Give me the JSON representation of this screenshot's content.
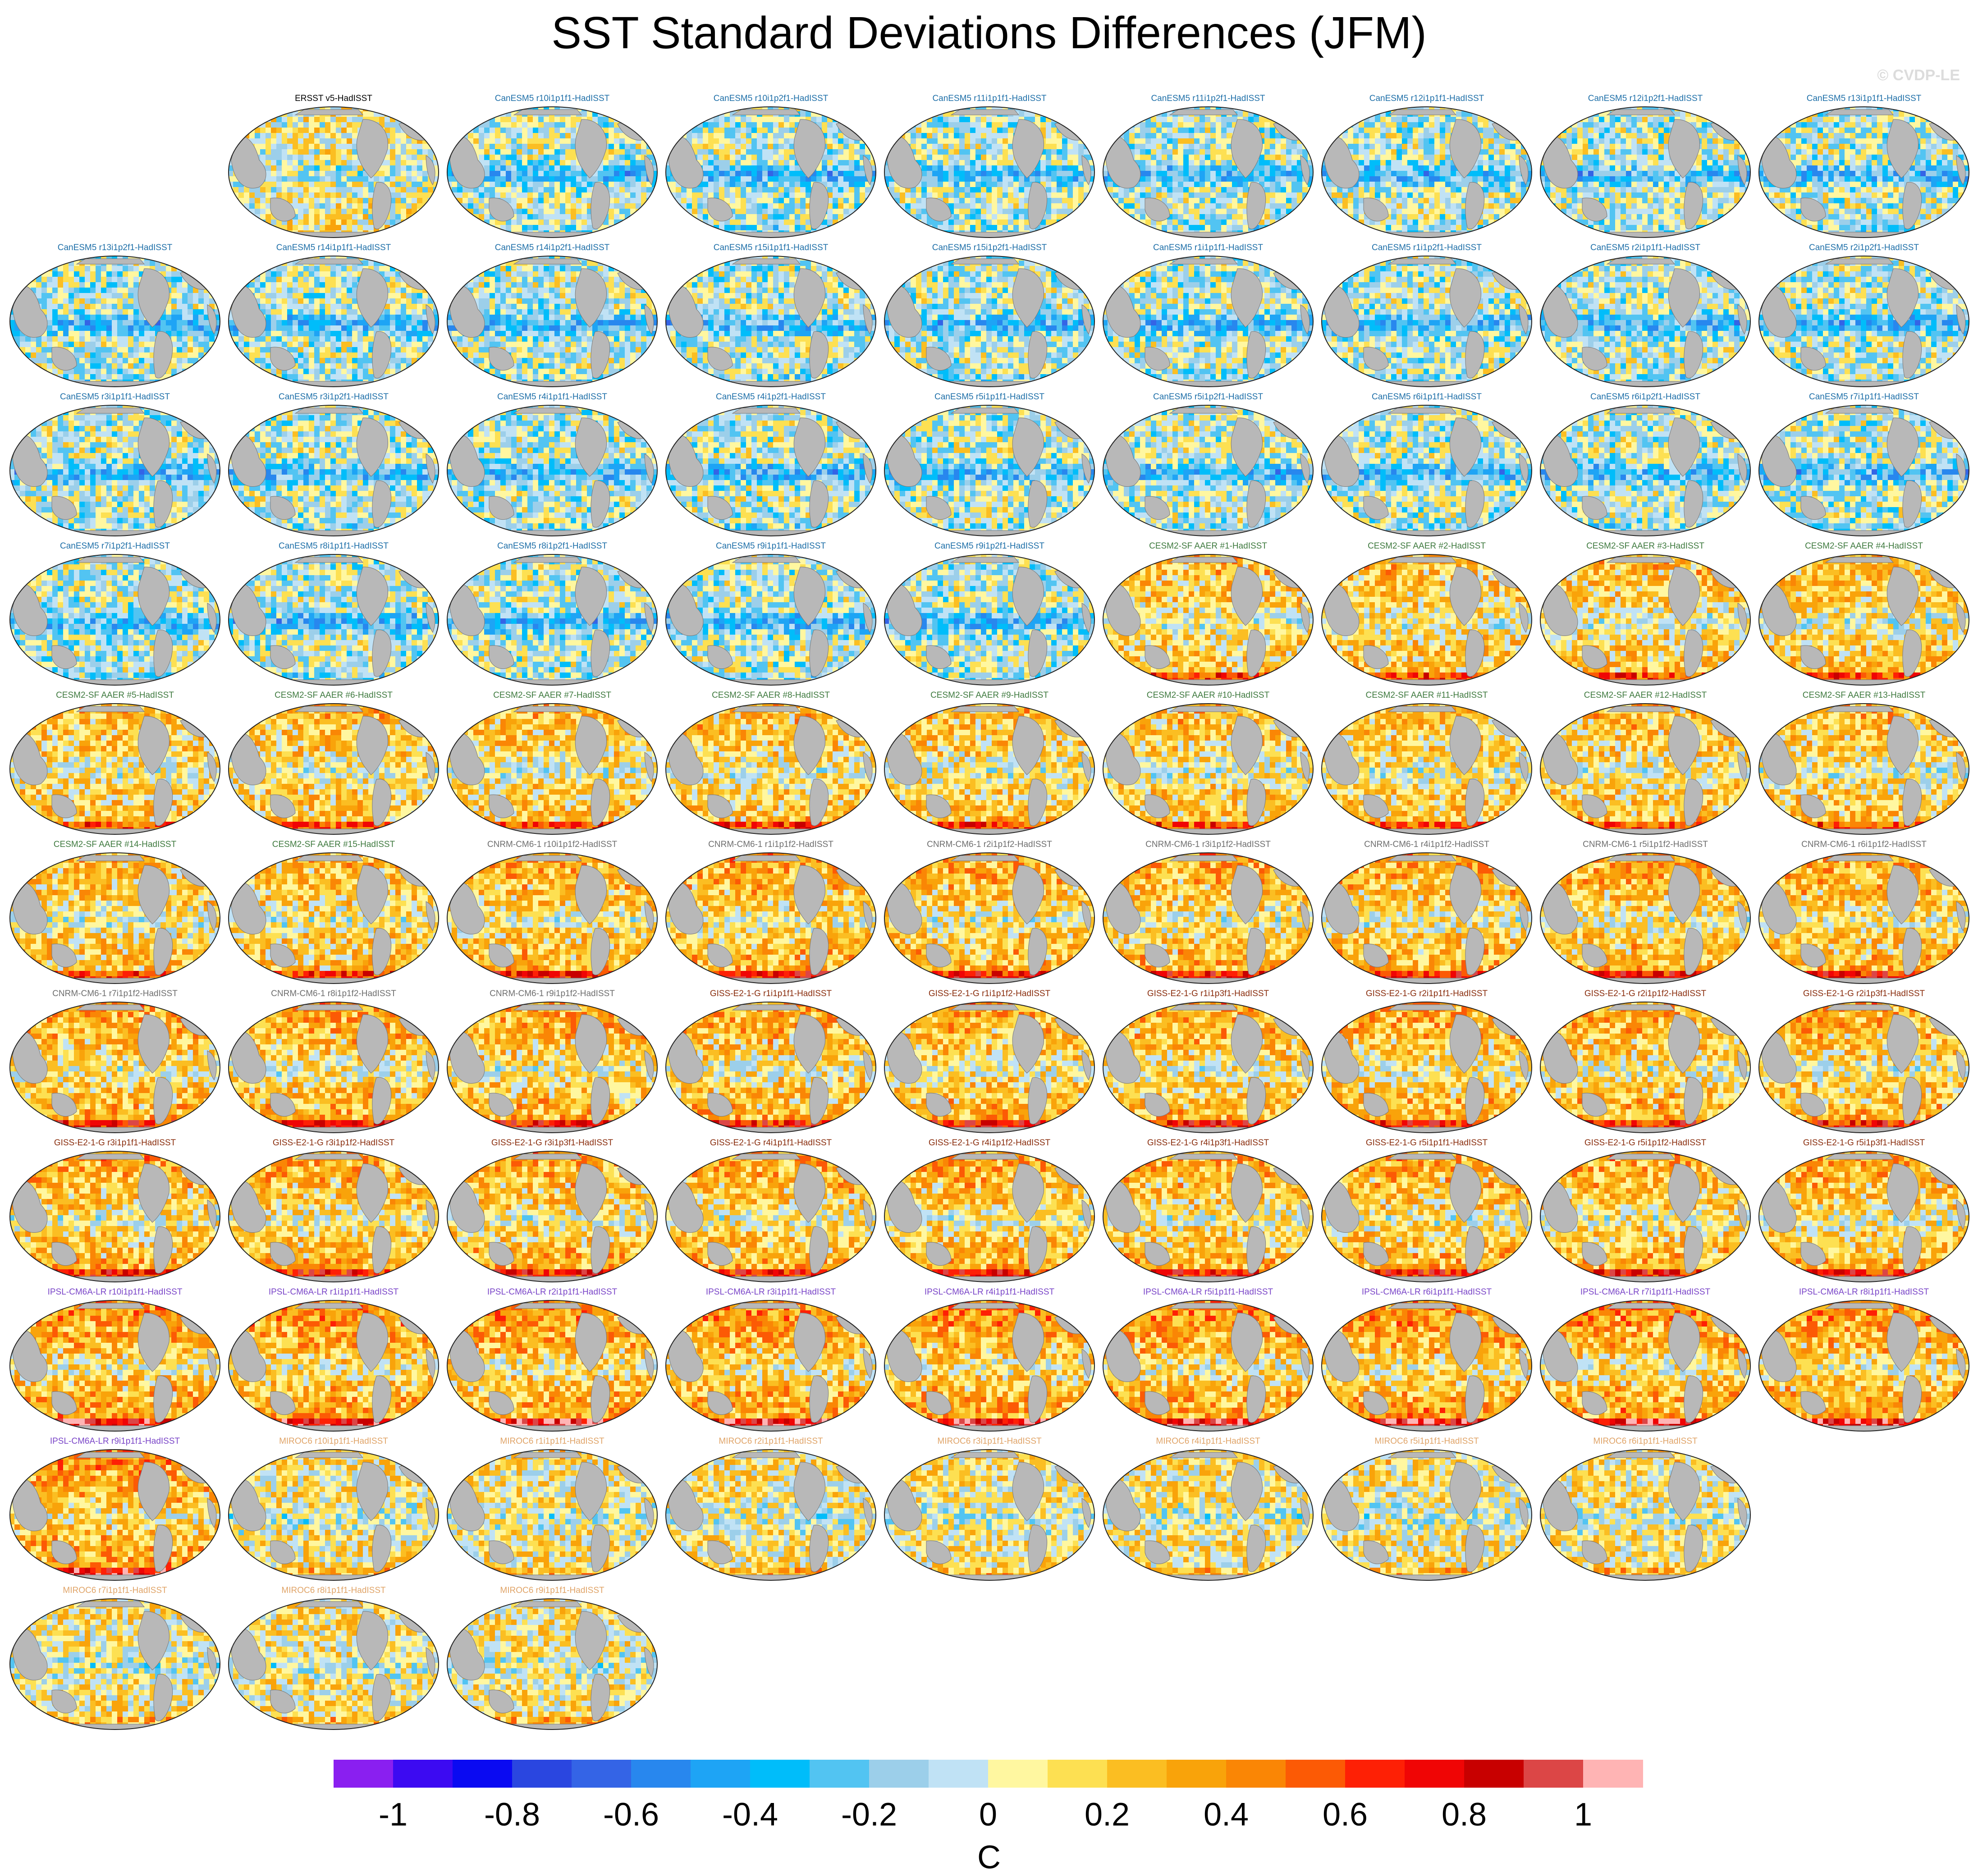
{
  "title": "SST Standard Deviations Differences (JFM)",
  "watermark": "© CVDP-LE",
  "colors": {
    "ocean_base": "#fff3a0",
    "land": "#b8b8b8",
    "groups": {
      "ERSST": "#000000",
      "CanESM5": "#1e6fa8",
      "CESM2-SF": "#3f7a3f",
      "CNRM-CM6-1": "#6e6e6e",
      "GISS-E2-1-G": "#8a2e0e",
      "IPSL-CM6A-LR": "#7a45c8",
      "MIROC6": "#e0a468"
    }
  },
  "chart_data": {
    "type": "heatmap",
    "title": "SST Standard Deviations Differences (JFM)",
    "units": "C",
    "colorbar": {
      "tick_labels": [
        "-1",
        "-0.8",
        "-0.6",
        "-0.4",
        "-0.2",
        "0",
        "0.2",
        "0.4",
        "0.6",
        "0.8",
        "1"
      ],
      "tick_values": [
        -1,
        -0.8,
        -0.6,
        -0.4,
        -0.2,
        0,
        0.2,
        0.4,
        0.6,
        0.8,
        1
      ],
      "boundaries": [
        -1.1,
        -1.0,
        -0.9,
        -0.8,
        -0.7,
        -0.6,
        -0.5,
        -0.4,
        -0.3,
        -0.2,
        -0.1,
        0,
        0.1,
        0.2,
        0.3,
        0.4,
        0.5,
        0.6,
        0.7,
        0.8,
        0.9,
        1.0,
        1.1
      ],
      "colors": [
        "#8a1ff0",
        "#3c0af2",
        "#0a0af2",
        "#2a46e0",
        "#3464e6",
        "#2887ee",
        "#1ea4f5",
        "#00bdfa",
        "#52c4f2",
        "#9ccfea",
        "#c0e2f5",
        "#fff7a0",
        "#fde052",
        "#fbbe22",
        "#f9a30a",
        "#fa8605",
        "#fc5a05",
        "#fe2005",
        "#f00505",
        "#c80000",
        "#dc4646",
        "#ffb4b4"
      ]
    },
    "panels": [
      {
        "title": "ERSST v5-HadISST",
        "group": "ERSST",
        "tone": 0.05
      },
      {
        "title": "CanESM5 r10i1p1f1-HadISST",
        "group": "CanESM5",
        "tone": -0.05
      },
      {
        "title": "CanESM5 r10i1p2f1-HadISST",
        "group": "CanESM5",
        "tone": -0.05
      },
      {
        "title": "CanESM5 r11i1p1f1-HadISST",
        "group": "CanESM5",
        "tone": -0.05
      },
      {
        "title": "CanESM5 r11i1p2f1-HadISST",
        "group": "CanESM5",
        "tone": -0.05
      },
      {
        "title": "CanESM5 r12i1p1f1-HadISST",
        "group": "CanESM5",
        "tone": -0.05
      },
      {
        "title": "CanESM5 r12i1p2f1-HadISST",
        "group": "CanESM5",
        "tone": -0.05
      },
      {
        "title": "CanESM5 r13i1p1f1-HadISST",
        "group": "CanESM5",
        "tone": -0.05
      },
      {
        "title": "CanESM5 r13i1p2f1-HadISST",
        "group": "CanESM5",
        "tone": -0.05
      },
      {
        "title": "CanESM5 r14i1p1f1-HadISST",
        "group": "CanESM5",
        "tone": -0.05
      },
      {
        "title": "CanESM5 r14i1p2f1-HadISST",
        "group": "CanESM5",
        "tone": -0.05
      },
      {
        "title": "CanESM5 r15i1p1f1-HadISST",
        "group": "CanESM5",
        "tone": -0.05
      },
      {
        "title": "CanESM5 r15i1p2f1-HadISST",
        "group": "CanESM5",
        "tone": -0.05
      },
      {
        "title": "CanESM5 r1i1p1f1-HadISST",
        "group": "CanESM5",
        "tone": -0.05
      },
      {
        "title": "CanESM5 r1i1p2f1-HadISST",
        "group": "CanESM5",
        "tone": -0.05
      },
      {
        "title": "CanESM5 r2i1p1f1-HadISST",
        "group": "CanESM5",
        "tone": -0.05
      },
      {
        "title": "CanESM5 r2i1p2f1-HadISST",
        "group": "CanESM5",
        "tone": -0.05
      },
      {
        "title": "CanESM5 r3i1p1f1-HadISST",
        "group": "CanESM5",
        "tone": -0.05
      },
      {
        "title": "CanESM5 r3i1p2f1-HadISST",
        "group": "CanESM5",
        "tone": -0.05
      },
      {
        "title": "CanESM5 r4i1p1f1-HadISST",
        "group": "CanESM5",
        "tone": -0.05
      },
      {
        "title": "CanESM5 r4i1p2f1-HadISST",
        "group": "CanESM5",
        "tone": -0.05
      },
      {
        "title": "CanESM5 r5i1p1f1-HadISST",
        "group": "CanESM5",
        "tone": -0.05
      },
      {
        "title": "CanESM5 r5i1p2f1-HadISST",
        "group": "CanESM5",
        "tone": -0.05
      },
      {
        "title": "CanESM5 r6i1p1f1-HadISST",
        "group": "CanESM5",
        "tone": -0.05
      },
      {
        "title": "CanESM5 r6i1p2f1-HadISST",
        "group": "CanESM5",
        "tone": -0.05
      },
      {
        "title": "CanESM5 r7i1p1f1-HadISST",
        "group": "CanESM5",
        "tone": -0.05
      },
      {
        "title": "CanESM5 r7i1p2f1-HadISST",
        "group": "CanESM5",
        "tone": -0.05
      },
      {
        "title": "CanESM5 r8i1p1f1-HadISST",
        "group": "CanESM5",
        "tone": -0.05
      },
      {
        "title": "CanESM5 r8i1p2f1-HadISST",
        "group": "CanESM5",
        "tone": -0.05
      },
      {
        "title": "CanESM5 r9i1p1f1-HadISST",
        "group": "CanESM5",
        "tone": -0.05
      },
      {
        "title": "CanESM5 r9i1p2f1-HadISST",
        "group": "CanESM5",
        "tone": -0.05
      },
      {
        "title": "CESM2-SF AAER #1-HadISST",
        "group": "CESM2-SF",
        "tone": 0.2
      },
      {
        "title": "CESM2-SF AAER #2-HadISST",
        "group": "CESM2-SF",
        "tone": 0.2
      },
      {
        "title": "CESM2-SF AAER #3-HadISST",
        "group": "CESM2-SF",
        "tone": 0.2
      },
      {
        "title": "CESM2-SF AAER #4-HadISST",
        "group": "CESM2-SF",
        "tone": 0.2
      },
      {
        "title": "CESM2-SF AAER #5-HadISST",
        "group": "CESM2-SF",
        "tone": 0.2
      },
      {
        "title": "CESM2-SF AAER #6-HadISST",
        "group": "CESM2-SF",
        "tone": 0.2
      },
      {
        "title": "CESM2-SF AAER #7-HadISST",
        "group": "CESM2-SF",
        "tone": 0.2
      },
      {
        "title": "CESM2-SF AAER #8-HadISST",
        "group": "CESM2-SF",
        "tone": 0.2
      },
      {
        "title": "CESM2-SF AAER #9-HadISST",
        "group": "CESM2-SF",
        "tone": 0.2
      },
      {
        "title": "CESM2-SF AAER #10-HadISST",
        "group": "CESM2-SF",
        "tone": 0.2
      },
      {
        "title": "CESM2-SF AAER #11-HadISST",
        "group": "CESM2-SF",
        "tone": 0.2
      },
      {
        "title": "CESM2-SF AAER #12-HadISST",
        "group": "CESM2-SF",
        "tone": 0.2
      },
      {
        "title": "CESM2-SF AAER #13-HadISST",
        "group": "CESM2-SF",
        "tone": 0.2
      },
      {
        "title": "CESM2-SF AAER #14-HadISST",
        "group": "CESM2-SF",
        "tone": 0.2
      },
      {
        "title": "CESM2-SF AAER #15-HadISST",
        "group": "CESM2-SF",
        "tone": 0.2
      },
      {
        "title": "CNRM-CM6-1 r10i1p1f2-HadISST",
        "group": "CNRM-CM6-1",
        "tone": 0.25
      },
      {
        "title": "CNRM-CM6-1 r1i1p1f2-HadISST",
        "group": "CNRM-CM6-1",
        "tone": 0.25
      },
      {
        "title": "CNRM-CM6-1 r2i1p1f2-HadISST",
        "group": "CNRM-CM6-1",
        "tone": 0.25
      },
      {
        "title": "CNRM-CM6-1 r3i1p1f2-HadISST",
        "group": "CNRM-CM6-1",
        "tone": 0.25
      },
      {
        "title": "CNRM-CM6-1 r4i1p1f2-HadISST",
        "group": "CNRM-CM6-1",
        "tone": 0.25
      },
      {
        "title": "CNRM-CM6-1 r5i1p1f2-HadISST",
        "group": "CNRM-CM6-1",
        "tone": 0.25
      },
      {
        "title": "CNRM-CM6-1 r6i1p1f2-HadISST",
        "group": "CNRM-CM6-1",
        "tone": 0.25
      },
      {
        "title": "CNRM-CM6-1 r7i1p1f2-HadISST",
        "group": "CNRM-CM6-1",
        "tone": 0.25
      },
      {
        "title": "CNRM-CM6-1 r8i1p1f2-HadISST",
        "group": "CNRM-CM6-1",
        "tone": 0.25
      },
      {
        "title": "CNRM-CM6-1 r9i1p1f2-HadISST",
        "group": "CNRM-CM6-1",
        "tone": 0.25
      },
      {
        "title": "GISS-E2-1-G r1i1p1f1-HadISST",
        "group": "GISS-E2-1-G",
        "tone": 0.25
      },
      {
        "title": "GISS-E2-1-G r1i1p1f2-HadISST",
        "group": "GISS-E2-1-G",
        "tone": 0.25
      },
      {
        "title": "GISS-E2-1-G r1i1p3f1-HadISST",
        "group": "GISS-E2-1-G",
        "tone": 0.25
      },
      {
        "title": "GISS-E2-1-G r2i1p1f1-HadISST",
        "group": "GISS-E2-1-G",
        "tone": 0.25
      },
      {
        "title": "GISS-E2-1-G r2i1p1f2-HadISST",
        "group": "GISS-E2-1-G",
        "tone": 0.25
      },
      {
        "title": "GISS-E2-1-G r2i1p3f1-HadISST",
        "group": "GISS-E2-1-G",
        "tone": 0.25
      },
      {
        "title": "GISS-E2-1-G r3i1p1f1-HadISST",
        "group": "GISS-E2-1-G",
        "tone": 0.25
      },
      {
        "title": "GISS-E2-1-G r3i1p1f2-HadISST",
        "group": "GISS-E2-1-G",
        "tone": 0.25
      },
      {
        "title": "GISS-E2-1-G r3i1p3f1-HadISST",
        "group": "GISS-E2-1-G",
        "tone": 0.25
      },
      {
        "title": "GISS-E2-1-G r4i1p1f1-HadISST",
        "group": "GISS-E2-1-G",
        "tone": 0.25
      },
      {
        "title": "GISS-E2-1-G r4i1p1f2-HadISST",
        "group": "GISS-E2-1-G",
        "tone": 0.25
      },
      {
        "title": "GISS-E2-1-G r4i1p3f1-HadISST",
        "group": "GISS-E2-1-G",
        "tone": 0.25
      },
      {
        "title": "GISS-E2-1-G r5i1p1f1-HadISST",
        "group": "GISS-E2-1-G",
        "tone": 0.25
      },
      {
        "title": "GISS-E2-1-G r5i1p1f2-HadISST",
        "group": "GISS-E2-1-G",
        "tone": 0.25
      },
      {
        "title": "GISS-E2-1-G r5i1p3f1-HadISST",
        "group": "GISS-E2-1-G",
        "tone": 0.25
      },
      {
        "title": "IPSL-CM6A-LR r10i1p1f1-HadISST",
        "group": "IPSL-CM6A-LR",
        "tone": 0.3
      },
      {
        "title": "IPSL-CM6A-LR r1i1p1f1-HadISST",
        "group": "IPSL-CM6A-LR",
        "tone": 0.3
      },
      {
        "title": "IPSL-CM6A-LR r2i1p1f1-HadISST",
        "group": "IPSL-CM6A-LR",
        "tone": 0.3
      },
      {
        "title": "IPSL-CM6A-LR r3i1p1f1-HadISST",
        "group": "IPSL-CM6A-LR",
        "tone": 0.3
      },
      {
        "title": "IPSL-CM6A-LR r4i1p1f1-HadISST",
        "group": "IPSL-CM6A-LR",
        "tone": 0.3
      },
      {
        "title": "IPSL-CM6A-LR r5i1p1f1-HadISST",
        "group": "IPSL-CM6A-LR",
        "tone": 0.3
      },
      {
        "title": "IPSL-CM6A-LR r6i1p1f1-HadISST",
        "group": "IPSL-CM6A-LR",
        "tone": 0.3
      },
      {
        "title": "IPSL-CM6A-LR r7i1p1f1-HadISST",
        "group": "IPSL-CM6A-LR",
        "tone": 0.3
      },
      {
        "title": "IPSL-CM6A-LR r8i1p1f1-HadISST",
        "group": "IPSL-CM6A-LR",
        "tone": 0.3
      },
      {
        "title": "IPSL-CM6A-LR r9i1p1f1-HadISST",
        "group": "IPSL-CM6A-LR",
        "tone": 0.3
      },
      {
        "title": "MIROC6 r10i1p1f1-HadISST",
        "group": "MIROC6",
        "tone": 0.1
      },
      {
        "title": "MIROC6 r1i1p1f1-HadISST",
        "group": "MIROC6",
        "tone": 0.1
      },
      {
        "title": "MIROC6 r2i1p1f1-HadISST",
        "group": "MIROC6",
        "tone": 0.1
      },
      {
        "title": "MIROC6 r3i1p1f1-HadISST",
        "group": "MIROC6",
        "tone": 0.1
      },
      {
        "title": "MIROC6 r4i1p1f1-HadISST",
        "group": "MIROC6",
        "tone": 0.1
      },
      {
        "title": "MIROC6 r5i1p1f1-HadISST",
        "group": "MIROC6",
        "tone": 0.1
      },
      {
        "title": "MIROC6 r6i1p1f1-HadISST",
        "group": "MIROC6",
        "tone": 0.1
      },
      {
        "title": "MIROC6 r7i1p1f1-HadISST",
        "group": "MIROC6",
        "tone": 0.1
      },
      {
        "title": "MIROC6 r8i1p1f1-HadISST",
        "group": "MIROC6",
        "tone": 0.1
      },
      {
        "title": "MIROC6 r9i1p1f1-HadISST",
        "group": "MIROC6",
        "tone": 0.1
      }
    ]
  }
}
